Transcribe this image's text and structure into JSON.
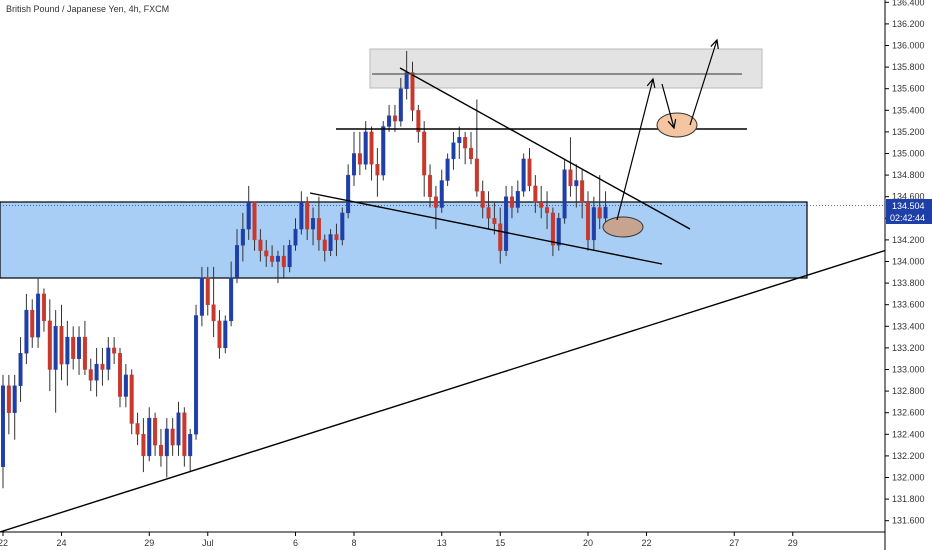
{
  "header": {
    "title": "British Pound / Japanese Yen, 4h, FXCM"
  },
  "price_tags": {
    "last_price": "134.504",
    "countdown": "02:42:44"
  },
  "colors": {
    "up": "#1e3fa8",
    "down": "#c8392d",
    "zone_fill": "#9fc9f5",
    "zone_stroke": "#000000",
    "resistance_fill": "#e3e3e3",
    "ellipse_brown": "#c7a48f",
    "ellipse_orange": "#f3c6a1",
    "price_line": "#1e3fa8",
    "tag_bg": "#1e3fa8"
  },
  "chart_data": {
    "type": "candlestick",
    "title": "British Pound / Japanese Yen, 4h, FXCM",
    "ylim": [
      131.5,
      136.5
    ],
    "y_ticks": [
      "131.600",
      "131.800",
      "132.000",
      "132.200",
      "132.400",
      "132.600",
      "132.800",
      "133.000",
      "133.200",
      "133.400",
      "133.600",
      "133.800",
      "134.000",
      "134.200",
      "134.400",
      "134.600",
      "134.800",
      "135.000",
      "135.200",
      "135.400",
      "135.600",
      "135.800",
      "136.000",
      "136.200",
      "136.400"
    ],
    "x_ticks": [
      {
        "label": "22",
        "index": 0
      },
      {
        "label": "24",
        "index": 10
      },
      {
        "label": "29",
        "index": 25
      },
      {
        "label": "Jul",
        "index": 35
      },
      {
        "label": "6",
        "index": 50
      },
      {
        "label": "8",
        "index": 60
      },
      {
        "label": "13",
        "index": 75
      },
      {
        "label": "15",
        "index": 85
      },
      {
        "label": "20",
        "index": 100
      },
      {
        "label": "22",
        "index": 110
      },
      {
        "label": "27",
        "index": 125
      },
      {
        "label": "29",
        "index": 135
      }
    ],
    "candles": [
      [
        132.1,
        132.95,
        131.9,
        132.85
      ],
      [
        132.85,
        132.95,
        132.4,
        132.6
      ],
      [
        132.6,
        132.95,
        132.35,
        132.85
      ],
      [
        132.85,
        133.3,
        132.7,
        133.15
      ],
      [
        133.15,
        133.7,
        133.05,
        133.55
      ],
      [
        133.55,
        133.65,
        133.2,
        133.3
      ],
      [
        133.3,
        133.85,
        133.2,
        133.7
      ],
      [
        133.7,
        133.75,
        133.35,
        133.45
      ],
      [
        133.45,
        133.65,
        132.8,
        133.0
      ],
      [
        133.0,
        133.55,
        132.6,
        133.4
      ],
      [
        133.4,
        133.6,
        132.9,
        133.05
      ],
      [
        133.05,
        133.45,
        132.85,
        133.3
      ],
      [
        133.3,
        133.4,
        133.0,
        133.1
      ],
      [
        133.1,
        133.4,
        132.95,
        133.3
      ],
      [
        133.3,
        133.45,
        132.95,
        133.0
      ],
      [
        133.0,
        133.1,
        132.8,
        132.9
      ],
      [
        132.9,
        133.2,
        132.75,
        133.05
      ],
      [
        133.05,
        133.2,
        132.85,
        133.0
      ],
      [
        133.0,
        133.3,
        132.9,
        133.2
      ],
      [
        133.2,
        133.3,
        133.05,
        133.15
      ],
      [
        133.15,
        133.2,
        132.65,
        132.75
      ],
      [
        132.75,
        133.05,
        132.65,
        132.95
      ],
      [
        132.95,
        133.0,
        132.4,
        132.5
      ],
      [
        132.5,
        132.6,
        132.3,
        132.4
      ],
      [
        132.4,
        132.55,
        132.05,
        132.2
      ],
      [
        132.2,
        132.65,
        132.15,
        132.55
      ],
      [
        132.55,
        132.6,
        132.2,
        132.3
      ],
      [
        132.3,
        132.45,
        132.1,
        132.2
      ],
      [
        132.2,
        132.55,
        132.0,
        132.45
      ],
      [
        132.45,
        132.55,
        132.2,
        132.3
      ],
      [
        132.3,
        132.7,
        132.2,
        132.6
      ],
      [
        132.6,
        132.65,
        132.1,
        132.2
      ],
      [
        132.2,
        132.45,
        132.05,
        132.4
      ],
      [
        132.4,
        133.6,
        132.35,
        133.5
      ],
      [
        133.5,
        133.95,
        133.4,
        133.85
      ],
      [
        133.85,
        133.95,
        133.5,
        133.6
      ],
      [
        133.6,
        133.95,
        133.3,
        133.45
      ],
      [
        133.45,
        133.55,
        133.1,
        133.2
      ],
      [
        133.2,
        133.5,
        133.15,
        133.45
      ],
      [
        133.45,
        134.0,
        133.4,
        133.85
      ],
      [
        133.85,
        134.3,
        133.8,
        134.15
      ],
      [
        134.15,
        134.45,
        134.0,
        134.3
      ],
      [
        134.3,
        134.7,
        134.2,
        134.55
      ],
      [
        134.55,
        134.55,
        134.1,
        134.2
      ],
      [
        134.2,
        134.3,
        134.0,
        134.1
      ],
      [
        134.1,
        134.2,
        133.95,
        134.05
      ],
      [
        134.05,
        134.15,
        133.95,
        134.0
      ],
      [
        134.0,
        134.1,
        133.8,
        134.05
      ],
      [
        134.05,
        134.15,
        133.85,
        133.95
      ],
      [
        133.95,
        134.2,
        133.9,
        134.15
      ],
      [
        134.15,
        134.4,
        134.1,
        134.3
      ],
      [
        134.3,
        134.65,
        134.25,
        134.55
      ],
      [
        134.55,
        134.6,
        134.2,
        134.3
      ],
      [
        134.3,
        134.5,
        134.15,
        134.4
      ],
      [
        134.4,
        134.6,
        134.1,
        134.2
      ],
      [
        134.2,
        134.25,
        134.0,
        134.1
      ],
      [
        134.1,
        134.3,
        134.05,
        134.25
      ],
      [
        134.25,
        134.35,
        134.05,
        134.2
      ],
      [
        134.2,
        134.5,
        134.15,
        134.45
      ],
      [
        134.45,
        134.9,
        134.4,
        134.8
      ],
      [
        134.8,
        135.2,
        134.7,
        135.0
      ],
      [
        135.0,
        135.2,
        134.8,
        134.9
      ],
      [
        134.9,
        135.3,
        134.85,
        135.2
      ],
      [
        135.2,
        135.25,
        134.75,
        134.9
      ],
      [
        134.9,
        135.05,
        134.6,
        134.8
      ],
      [
        134.8,
        135.3,
        134.75,
        135.25
      ],
      [
        135.25,
        135.45,
        135.2,
        135.35
      ],
      [
        135.35,
        135.45,
        135.2,
        135.3
      ],
      [
        135.3,
        135.7,
        135.25,
        135.6
      ],
      [
        135.6,
        135.95,
        135.5,
        135.75
      ],
      [
        135.75,
        135.85,
        135.3,
        135.4
      ],
      [
        135.4,
        135.45,
        135.1,
        135.2
      ],
      [
        135.2,
        135.3,
        134.6,
        134.8
      ],
      [
        134.8,
        134.9,
        134.5,
        134.6
      ],
      [
        134.6,
        134.7,
        134.3,
        134.5
      ],
      [
        134.5,
        134.85,
        134.45,
        134.75
      ],
      [
        134.75,
        135.0,
        134.7,
        134.95
      ],
      [
        134.95,
        135.2,
        134.85,
        135.1
      ],
      [
        135.1,
        135.25,
        134.95,
        135.15
      ],
      [
        135.15,
        135.2,
        134.9,
        135.05
      ],
      [
        135.05,
        135.2,
        134.9,
        134.95
      ],
      [
        134.95,
        135.5,
        134.6,
        134.65
      ],
      [
        134.65,
        134.75,
        134.4,
        134.5
      ],
      [
        134.5,
        134.65,
        134.3,
        134.4
      ],
      [
        134.4,
        134.55,
        134.25,
        134.35
      ],
      [
        134.35,
        134.5,
        133.98,
        134.1
      ],
      [
        134.1,
        134.7,
        134.05,
        134.6
      ],
      [
        134.6,
        134.7,
        134.4,
        134.5
      ],
      [
        134.5,
        134.75,
        134.45,
        134.65
      ],
      [
        134.65,
        135.0,
        134.6,
        134.95
      ],
      [
        134.95,
        135.05,
        134.65,
        134.7
      ],
      [
        134.7,
        134.8,
        134.45,
        134.55
      ],
      [
        134.55,
        134.7,
        134.4,
        134.5
      ],
      [
        134.5,
        134.65,
        134.3,
        134.45
      ],
      [
        134.45,
        134.5,
        134.05,
        134.15
      ],
      [
        134.15,
        134.45,
        134.1,
        134.4
      ],
      [
        134.4,
        134.95,
        134.35,
        134.85
      ],
      [
        134.85,
        135.15,
        134.6,
        134.7
      ],
      [
        134.7,
        134.9,
        134.5,
        134.75
      ],
      [
        134.75,
        134.85,
        134.4,
        134.55
      ],
      [
        134.55,
        134.65,
        134.1,
        134.2
      ],
      [
        134.2,
        134.6,
        134.1,
        134.5
      ],
      [
        134.5,
        134.8,
        134.3,
        134.4
      ],
      [
        134.4,
        134.65,
        134.3,
        134.504
      ]
    ]
  }
}
